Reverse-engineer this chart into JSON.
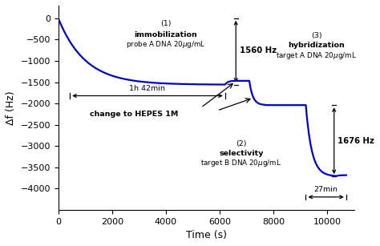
{
  "title": "",
  "xlabel": "Time (s)",
  "ylabel": "Δf (Hz)",
  "xlim": [
    0,
    11000
  ],
  "ylim": [
    -4500,
    300
  ],
  "yticks": [
    0,
    -500,
    -1000,
    -1500,
    -2000,
    -2500,
    -3000,
    -3500,
    -4000
  ],
  "xticks": [
    0,
    2000,
    4000,
    6000,
    8000,
    10000
  ],
  "line_color": "#0000cc",
  "line_width": 1.6,
  "background_color": "#ffffff",
  "annotation_color": "#000000",
  "text_fontsize": 6.8,
  "axis_fontsize": 9
}
